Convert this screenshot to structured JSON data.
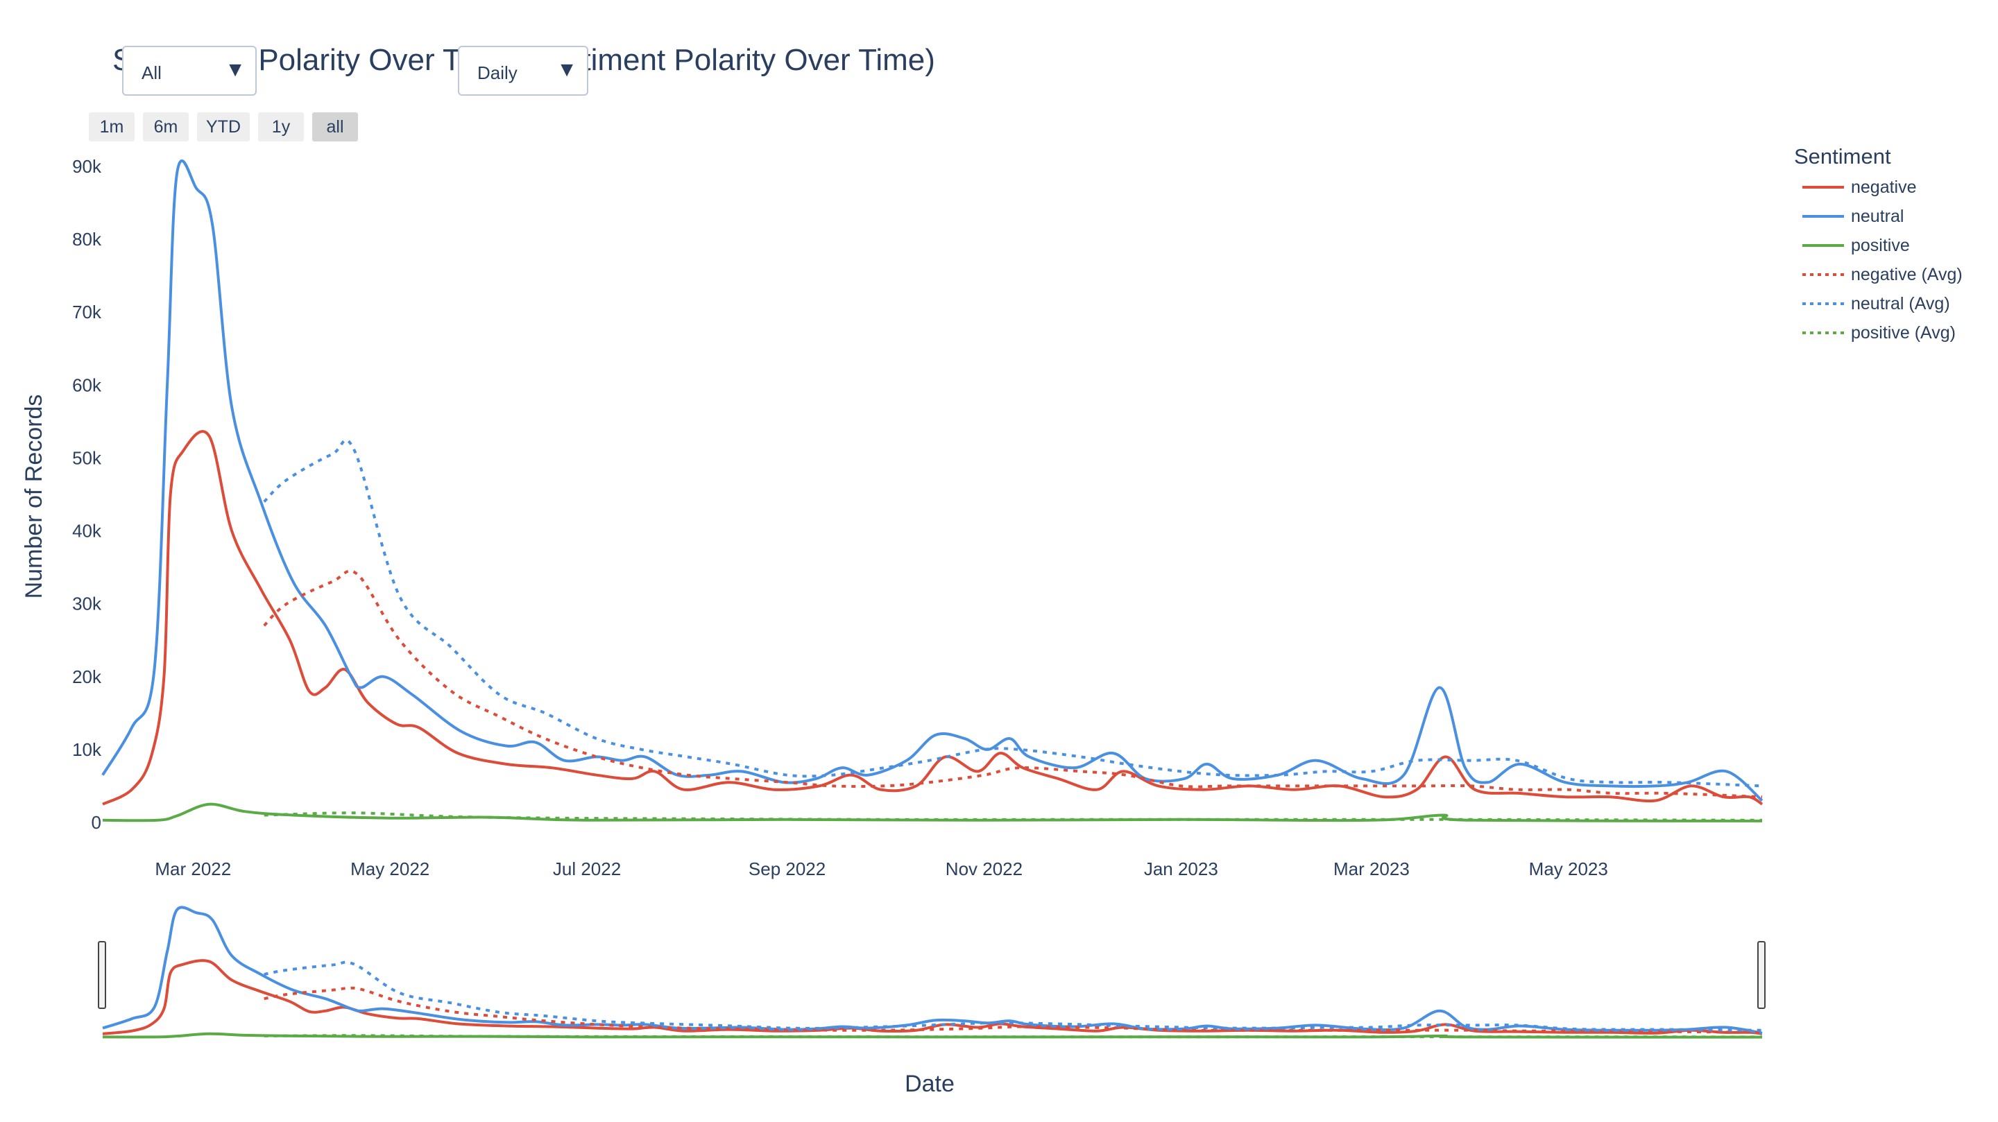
{
  "title": "Sentiment Polarity Over Time (Sentiment Polarity Over Time)",
  "controls": {
    "sentiment_dropdown": {
      "value": "All"
    },
    "resolution_dropdown": {
      "value": "Daily"
    },
    "range_buttons": [
      {
        "label": "1m",
        "active": false
      },
      {
        "label": "6m",
        "active": false
      },
      {
        "label": "YTD",
        "active": false
      },
      {
        "label": "1y",
        "active": false
      },
      {
        "label": "all",
        "active": true
      }
    ]
  },
  "legend": {
    "title": "Sentiment",
    "items": [
      {
        "label": "negative",
        "color": "#dd4b39",
        "dash": "solid"
      },
      {
        "label": "neutral",
        "color": "#4a90e2",
        "dash": "solid"
      },
      {
        "label": "positive",
        "color": "#5aaa46",
        "dash": "solid"
      },
      {
        "label": "negative (Avg)",
        "color": "#dd4b39",
        "dash": "dot"
      },
      {
        "label": "neutral (Avg)",
        "color": "#4a90e2",
        "dash": "dot"
      },
      {
        "label": "positive (Avg)",
        "color": "#5aaa46",
        "dash": "dot"
      }
    ]
  },
  "chart_data": {
    "type": "line",
    "title": "Sentiment Polarity Over Time (Sentiment Polarity Over Time)",
    "xlabel": "Date",
    "ylabel": "Number of Records",
    "xlim": [
      "2022-02-01",
      "2023-06-30"
    ],
    "ylim": [
      0,
      90000
    ],
    "x_ticks": [
      "Mar 2022",
      "May 2022",
      "Jul 2022",
      "Sep 2022",
      "Nov 2022",
      "Jan 2023",
      "Mar 2023",
      "May 2023"
    ],
    "x_tick_dates": [
      "2022-03-01",
      "2022-05-01",
      "2022-07-01",
      "2022-09-01",
      "2022-11-01",
      "2023-01-01",
      "2023-03-01",
      "2023-05-01"
    ],
    "y_ticks": [
      "0",
      "10k",
      "20k",
      "30k",
      "40k",
      "50k",
      "60k",
      "70k",
      "80k",
      "90k"
    ],
    "y_tick_values": [
      0,
      10000,
      20000,
      30000,
      40000,
      50000,
      60000,
      70000,
      80000,
      90000
    ],
    "grid": false,
    "legend_position": "right",
    "range_slider": true,
    "series": [
      {
        "name": "negative",
        "color": "#dd4b39",
        "dash": "solid",
        "points": [
          [
            "2022-02-01",
            2500
          ],
          [
            "2022-02-10",
            4500
          ],
          [
            "2022-02-16",
            9000
          ],
          [
            "2022-02-20",
            20000
          ],
          [
            "2022-02-22",
            45000
          ],
          [
            "2022-02-26",
            51000
          ],
          [
            "2022-03-06",
            53000
          ],
          [
            "2022-03-13",
            40000
          ],
          [
            "2022-03-22",
            32000
          ],
          [
            "2022-03-31",
            25000
          ],
          [
            "2022-04-06",
            18000
          ],
          [
            "2022-04-11",
            18500
          ],
          [
            "2022-04-17",
            21000
          ],
          [
            "2022-04-24",
            16500
          ],
          [
            "2022-05-03",
            13500
          ],
          [
            "2022-05-10",
            13000
          ],
          [
            "2022-05-22",
            9500
          ],
          [
            "2022-06-06",
            8000
          ],
          [
            "2022-06-20",
            7500
          ],
          [
            "2022-07-04",
            6500
          ],
          [
            "2022-07-15",
            6000
          ],
          [
            "2022-07-22",
            7000
          ],
          [
            "2022-07-31",
            4500
          ],
          [
            "2022-08-14",
            5500
          ],
          [
            "2022-08-28",
            4500
          ],
          [
            "2022-09-11",
            5000
          ],
          [
            "2022-09-21",
            6500
          ],
          [
            "2022-09-30",
            4500
          ],
          [
            "2022-10-11",
            5000
          ],
          [
            "2022-10-20",
            9000
          ],
          [
            "2022-10-30",
            7000
          ],
          [
            "2022-11-06",
            9500
          ],
          [
            "2022-11-13",
            7500
          ],
          [
            "2022-11-24",
            6000
          ],
          [
            "2022-12-06",
            4500
          ],
          [
            "2022-12-14",
            7000
          ],
          [
            "2022-12-25",
            5000
          ],
          [
            "2023-01-08",
            4500
          ],
          [
            "2023-01-22",
            5000
          ],
          [
            "2023-02-05",
            4500
          ],
          [
            "2023-02-19",
            5000
          ],
          [
            "2023-03-05",
            3500
          ],
          [
            "2023-03-15",
            4500
          ],
          [
            "2023-03-24",
            9000
          ],
          [
            "2023-04-02",
            4500
          ],
          [
            "2023-04-16",
            4000
          ],
          [
            "2023-04-30",
            3500
          ],
          [
            "2023-05-14",
            3500
          ],
          [
            "2023-05-28",
            3000
          ],
          [
            "2023-06-08",
            5000
          ],
          [
            "2023-06-18",
            3500
          ],
          [
            "2023-06-26",
            3500
          ],
          [
            "2023-06-30",
            2500
          ]
        ]
      },
      {
        "name": "neutral",
        "color": "#4a90e2",
        "dash": "solid",
        "points": [
          [
            "2022-02-01",
            6500
          ],
          [
            "2022-02-10",
            13000
          ],
          [
            "2022-02-17",
            21000
          ],
          [
            "2022-02-21",
            60000
          ],
          [
            "2022-02-24",
            89000
          ],
          [
            "2022-03-02",
            87000
          ],
          [
            "2022-03-07",
            82000
          ],
          [
            "2022-03-13",
            57000
          ],
          [
            "2022-03-22",
            44000
          ],
          [
            "2022-04-01",
            33000
          ],
          [
            "2022-04-11",
            27000
          ],
          [
            "2022-04-19",
            20000
          ],
          [
            "2022-04-22",
            18500
          ],
          [
            "2022-04-29",
            20000
          ],
          [
            "2022-05-08",
            17500
          ],
          [
            "2022-05-23",
            12500
          ],
          [
            "2022-06-06",
            10500
          ],
          [
            "2022-06-15",
            11000
          ],
          [
            "2022-06-24",
            8500
          ],
          [
            "2022-07-04",
            9000
          ],
          [
            "2022-07-12",
            8500
          ],
          [
            "2022-07-19",
            9000
          ],
          [
            "2022-07-29",
            6500
          ],
          [
            "2022-08-08",
            6500
          ],
          [
            "2022-08-18",
            7000
          ],
          [
            "2022-08-31",
            5500
          ],
          [
            "2022-09-10",
            6000
          ],
          [
            "2022-09-18",
            7500
          ],
          [
            "2022-09-26",
            6500
          ],
          [
            "2022-10-08",
            8500
          ],
          [
            "2022-10-17",
            12000
          ],
          [
            "2022-10-26",
            11500
          ],
          [
            "2022-11-02",
            10000
          ],
          [
            "2022-11-09",
            11500
          ],
          [
            "2022-11-15",
            9000
          ],
          [
            "2022-11-29",
            7500
          ],
          [
            "2022-12-11",
            9500
          ],
          [
            "2022-12-21",
            6000
          ],
          [
            "2023-01-02",
            6000
          ],
          [
            "2023-01-09",
            8000
          ],
          [
            "2023-01-17",
            6000
          ],
          [
            "2023-01-31",
            6500
          ],
          [
            "2023-02-12",
            8500
          ],
          [
            "2023-02-26",
            6000
          ],
          [
            "2023-03-11",
            6500
          ],
          [
            "2023-03-22",
            18500
          ],
          [
            "2023-03-30",
            7500
          ],
          [
            "2023-04-06",
            5500
          ],
          [
            "2023-04-16",
            8000
          ],
          [
            "2023-04-30",
            5500
          ],
          [
            "2023-05-14",
            5000
          ],
          [
            "2023-05-28",
            5000
          ],
          [
            "2023-06-07",
            5500
          ],
          [
            "2023-06-19",
            7000
          ],
          [
            "2023-06-30",
            3000
          ]
        ]
      },
      {
        "name": "positive",
        "color": "#5aaa46",
        "dash": "solid",
        "points": [
          [
            "2022-02-01",
            300
          ],
          [
            "2022-02-18",
            300
          ],
          [
            "2022-02-24",
            900
          ],
          [
            "2022-03-06",
            2500
          ],
          [
            "2022-03-17",
            1500
          ],
          [
            "2022-04-01",
            1000
          ],
          [
            "2022-05-01",
            600
          ],
          [
            "2022-06-01",
            700
          ],
          [
            "2022-07-01",
            300
          ],
          [
            "2022-09-01",
            400
          ],
          [
            "2022-11-01",
            300
          ],
          [
            "2023-01-01",
            400
          ],
          [
            "2023-03-01",
            300
          ],
          [
            "2023-03-23",
            1000
          ],
          [
            "2023-04-01",
            300
          ],
          [
            "2023-06-30",
            200
          ]
        ]
      },
      {
        "name": "negative (Avg)",
        "color": "#dd4b39",
        "dash": "dot",
        "points": [
          [
            "2022-03-23",
            27000
          ],
          [
            "2022-03-30",
            30000
          ],
          [
            "2022-04-13",
            33000
          ],
          [
            "2022-04-21",
            34000
          ],
          [
            "2022-05-04",
            25000
          ],
          [
            "2022-05-20",
            18000
          ],
          [
            "2022-06-04",
            14500
          ],
          [
            "2022-06-18",
            11500
          ],
          [
            "2022-07-04",
            9000
          ],
          [
            "2022-07-18",
            7500
          ],
          [
            "2022-08-01",
            6500
          ],
          [
            "2022-08-15",
            6000
          ],
          [
            "2022-09-01",
            5500
          ],
          [
            "2022-09-15",
            5000
          ],
          [
            "2022-10-01",
            5000
          ],
          [
            "2022-10-15",
            5500
          ],
          [
            "2022-11-01",
            6500
          ],
          [
            "2022-11-12",
            7500
          ],
          [
            "2022-12-01",
            7000
          ],
          [
            "2022-12-15",
            6500
          ],
          [
            "2023-01-01",
            5000
          ],
          [
            "2023-01-15",
            5000
          ],
          [
            "2023-02-01",
            5000
          ],
          [
            "2023-02-15",
            5000
          ],
          [
            "2023-03-01",
            5000
          ],
          [
            "2023-03-15",
            5000
          ],
          [
            "2023-04-01",
            5000
          ],
          [
            "2023-04-15",
            4500
          ],
          [
            "2023-05-01",
            4500
          ],
          [
            "2023-05-15",
            4000
          ],
          [
            "2023-06-01",
            4000
          ],
          [
            "2023-06-30",
            3500
          ]
        ]
      },
      {
        "name": "neutral (Avg)",
        "color": "#4a90e2",
        "dash": "dot",
        "points": [
          [
            "2022-03-23",
            44000
          ],
          [
            "2022-03-30",
            47000
          ],
          [
            "2022-04-13",
            50500
          ],
          [
            "2022-04-20",
            51000
          ],
          [
            "2022-05-04",
            31000
          ],
          [
            "2022-05-20",
            24000
          ],
          [
            "2022-06-04",
            17500
          ],
          [
            "2022-06-18",
            15000
          ],
          [
            "2022-07-04",
            11500
          ],
          [
            "2022-07-18",
            10000
          ],
          [
            "2022-08-01",
            9000
          ],
          [
            "2022-08-15",
            8000
          ],
          [
            "2022-09-01",
            6500
          ],
          [
            "2022-09-15",
            6500
          ],
          [
            "2022-10-01",
            7500
          ],
          [
            "2022-10-15",
            8500
          ],
          [
            "2022-11-01",
            10000
          ],
          [
            "2022-11-12",
            10000
          ],
          [
            "2022-12-01",
            9000
          ],
          [
            "2022-12-15",
            8000
          ],
          [
            "2023-01-01",
            7000
          ],
          [
            "2023-01-15",
            6500
          ],
          [
            "2023-02-01",
            6500
          ],
          [
            "2023-02-15",
            7000
          ],
          [
            "2023-03-01",
            7000
          ],
          [
            "2023-03-15",
            8500
          ],
          [
            "2023-04-01",
            8500
          ],
          [
            "2023-04-15",
            8500
          ],
          [
            "2023-05-01",
            6000
          ],
          [
            "2023-05-15",
            5500
          ],
          [
            "2023-06-01",
            5500
          ],
          [
            "2023-06-30",
            5000
          ]
        ]
      },
      {
        "name": "positive (Avg)",
        "color": "#5aaa46",
        "dash": "dot",
        "points": [
          [
            "2022-03-23",
            1000
          ],
          [
            "2022-04-20",
            1300
          ],
          [
            "2022-05-20",
            800
          ],
          [
            "2022-06-20",
            600
          ],
          [
            "2022-08-01",
            500
          ],
          [
            "2022-10-01",
            400
          ],
          [
            "2022-12-01",
            400
          ],
          [
            "2023-02-01",
            400
          ],
          [
            "2023-04-01",
            400
          ],
          [
            "2023-06-30",
            300
          ]
        ]
      }
    ]
  }
}
